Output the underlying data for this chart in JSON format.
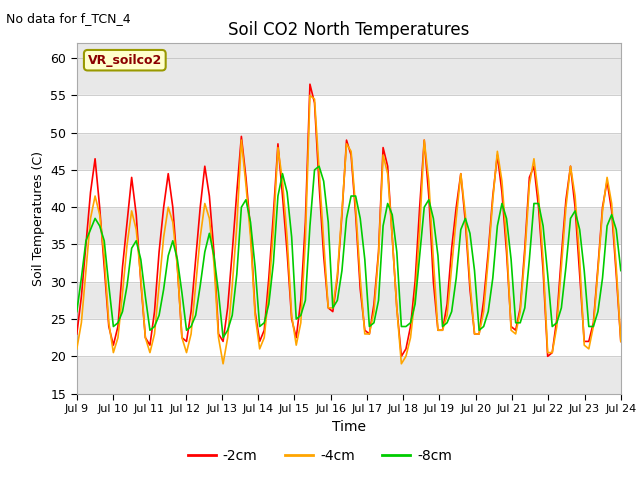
{
  "title": "Soil CO2 North Temperatures",
  "top_left_text": "No data for f_TCN_4",
  "vr_label": "VR_soilco2",
  "xlabel": "Time",
  "ylabel": "Soil Temperatures (C)",
  "ylim": [
    15,
    62
  ],
  "yticks": [
    15,
    20,
    25,
    30,
    35,
    40,
    45,
    50,
    55,
    60
  ],
  "x_labels": [
    "Jul 9",
    "Jul 10",
    "Jul 11",
    "Jul 12",
    "Jul 13",
    "Jul 14",
    "Jul 15",
    "Jul 16",
    "Jul 17",
    "Jul 18",
    "Jul 19",
    "Jul 20",
    "Jul 21",
    "Jul 22",
    "Jul 23",
    "Jul 24"
  ],
  "line_colors": {
    "2cm": "#ff0000",
    "4cm": "#ffa500",
    "8cm": "#00cc00"
  },
  "legend_entries": [
    "-2cm",
    "-4cm",
    "-8cm"
  ],
  "background_color": "#ffffff",
  "plot_bg_color": "#e8e8e8",
  "white_band_color": "#ffffff",
  "gray_band_color": "#e0e0e0",
  "data_2cm": [
    23.0,
    28.0,
    35.0,
    42.0,
    46.5,
    40.0,
    32.0,
    24.0,
    21.5,
    24.0,
    32.0,
    38.0,
    44.0,
    39.0,
    30.0,
    22.5,
    21.5,
    26.0,
    34.0,
    40.0,
    44.5,
    40.0,
    32.0,
    22.5,
    22.0,
    26.0,
    33.0,
    40.0,
    45.5,
    41.5,
    34.0,
    23.0,
    22.0,
    26.5,
    34.0,
    42.0,
    49.5,
    44.0,
    37.0,
    26.0,
    22.0,
    23.5,
    30.5,
    39.0,
    48.5,
    41.5,
    34.0,
    25.0,
    22.5,
    27.5,
    38.0,
    56.5,
    54.0,
    43.0,
    33.5,
    26.5,
    26.0,
    30.5,
    39.0,
    49.0,
    47.0,
    39.0,
    29.0,
    23.5,
    23.0,
    27.0,
    34.0,
    48.0,
    45.5,
    36.0,
    26.5,
    20.0,
    21.0,
    24.0,
    30.0,
    40.0,
    49.0,
    41.5,
    30.0,
    23.5,
    23.5,
    27.0,
    34.5,
    40.0,
    44.5,
    38.0,
    29.0,
    23.0,
    23.0,
    27.5,
    34.0,
    41.5,
    47.0,
    42.0,
    34.0,
    24.0,
    23.5,
    26.5,
    34.5,
    44.0,
    45.5,
    40.0,
    31.5,
    20.0,
    20.5,
    25.0,
    33.5,
    41.0,
    45.5,
    40.0,
    31.0,
    22.0,
    22.0,
    24.5,
    32.0,
    40.0,
    43.5,
    39.5,
    31.0,
    22.0
  ],
  "data_4cm": [
    21.0,
    24.5,
    31.5,
    38.5,
    41.5,
    39.0,
    33.5,
    24.5,
    20.5,
    22.5,
    28.5,
    35.0,
    39.5,
    37.0,
    30.5,
    22.5,
    20.5,
    23.0,
    29.5,
    36.0,
    40.0,
    38.0,
    32.0,
    22.5,
    20.5,
    23.0,
    29.5,
    36.0,
    40.5,
    38.5,
    32.5,
    22.5,
    19.0,
    22.5,
    29.5,
    37.5,
    49.0,
    43.0,
    36.0,
    25.5,
    21.0,
    22.5,
    28.5,
    37.0,
    48.0,
    43.5,
    36.0,
    25.5,
    21.5,
    24.5,
    35.5,
    55.0,
    54.5,
    45.0,
    35.5,
    26.5,
    26.5,
    31.0,
    39.5,
    48.5,
    47.5,
    40.0,
    30.5,
    23.0,
    23.0,
    26.0,
    33.5,
    47.0,
    44.5,
    36.0,
    26.5,
    19.0,
    20.0,
    22.5,
    28.0,
    37.0,
    49.0,
    43.5,
    33.0,
    23.5,
    23.5,
    25.5,
    32.0,
    38.5,
    44.5,
    39.0,
    30.0,
    23.0,
    23.0,
    26.0,
    33.0,
    41.0,
    47.5,
    43.5,
    35.5,
    23.5,
    23.0,
    26.0,
    33.5,
    43.0,
    46.5,
    41.5,
    33.0,
    20.5,
    20.5,
    24.0,
    32.0,
    40.0,
    45.5,
    41.5,
    33.0,
    21.5,
    21.0,
    24.0,
    31.5,
    39.5,
    44.0,
    40.5,
    32.0,
    22.0
  ],
  "data_8cm": [
    26.0,
    30.5,
    35.5,
    37.0,
    38.5,
    37.5,
    35.5,
    29.5,
    24.0,
    24.5,
    26.0,
    29.5,
    34.5,
    35.5,
    33.0,
    28.0,
    23.5,
    24.0,
    25.5,
    29.0,
    33.5,
    35.5,
    33.0,
    28.5,
    23.5,
    24.0,
    25.5,
    29.5,
    34.0,
    36.5,
    33.5,
    28.5,
    22.5,
    23.5,
    25.5,
    31.0,
    40.0,
    41.0,
    38.0,
    32.0,
    24.0,
    24.5,
    27.0,
    32.5,
    41.5,
    44.5,
    42.0,
    36.0,
    25.0,
    25.5,
    27.5,
    37.5,
    45.0,
    45.5,
    43.5,
    38.0,
    26.5,
    27.5,
    31.5,
    38.5,
    41.5,
    41.5,
    38.5,
    33.0,
    24.0,
    24.5,
    27.5,
    37.5,
    40.5,
    39.0,
    34.0,
    24.0,
    24.0,
    24.5,
    27.0,
    33.5,
    40.0,
    41.0,
    38.5,
    33.5,
    24.0,
    24.5,
    26.0,
    30.5,
    37.0,
    38.5,
    36.5,
    31.5,
    23.5,
    24.0,
    26.0,
    30.5,
    37.5,
    40.5,
    38.5,
    33.0,
    24.5,
    24.5,
    26.5,
    33.0,
    40.5,
    40.5,
    37.5,
    31.0,
    24.0,
    24.5,
    26.5,
    32.0,
    38.5,
    39.5,
    37.0,
    31.5,
    24.0,
    24.0,
    26.0,
    30.5,
    37.5,
    39.0,
    37.0,
    31.5
  ]
}
